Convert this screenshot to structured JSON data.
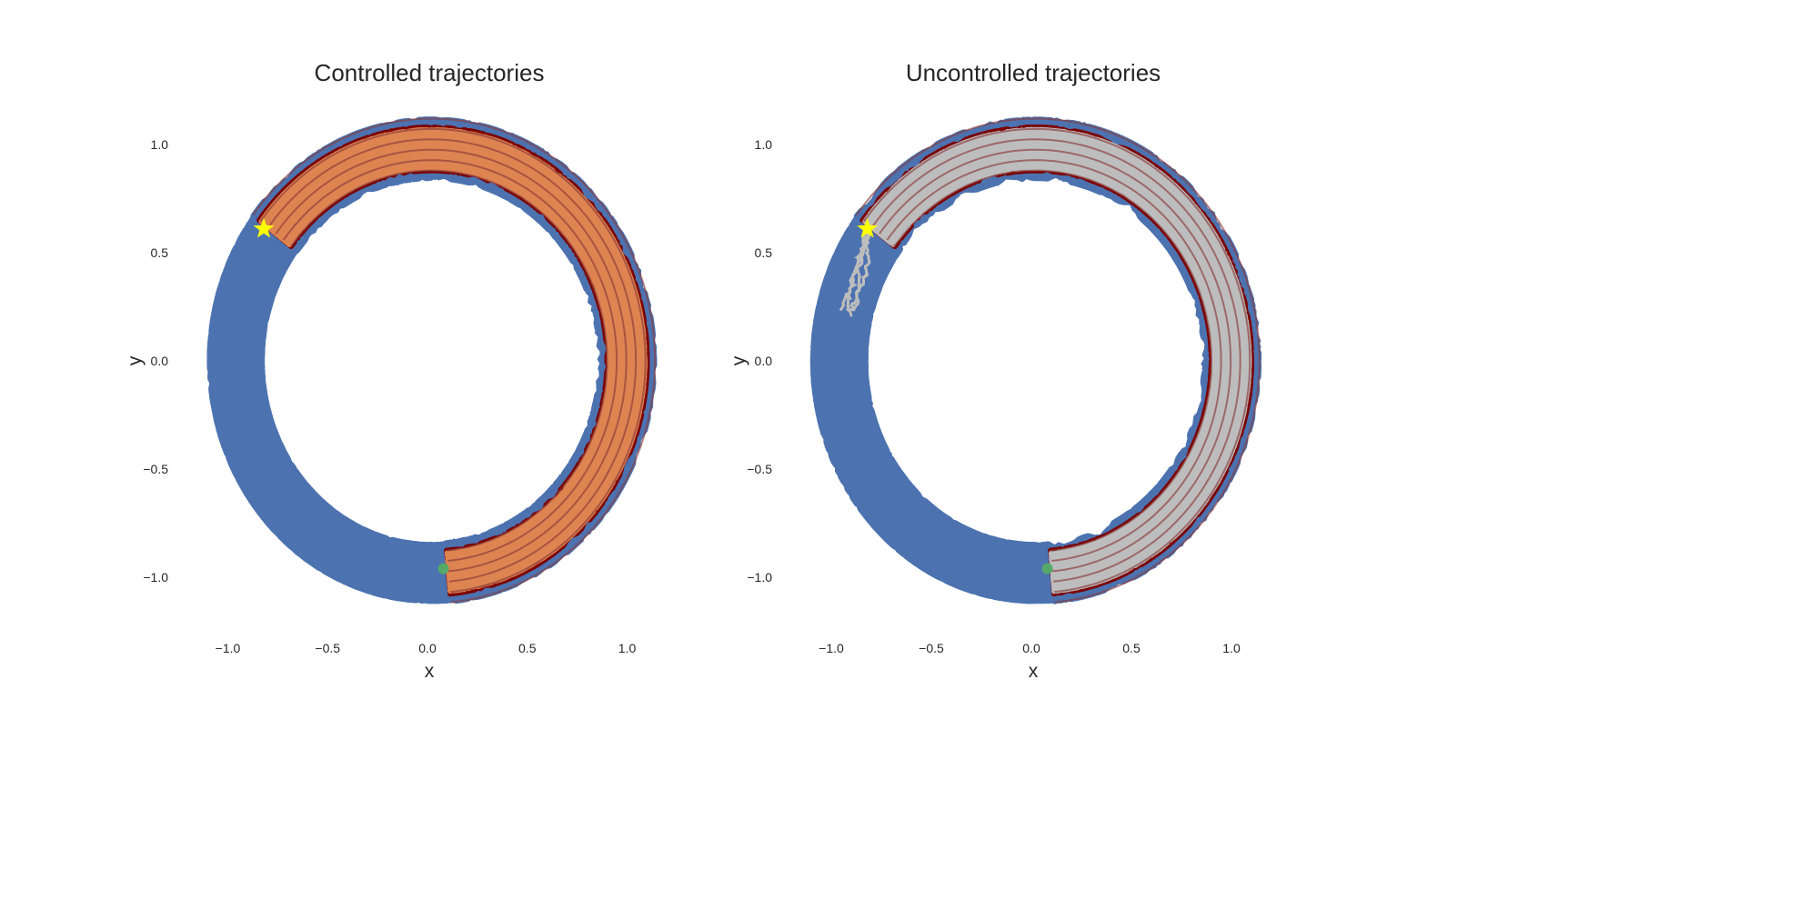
{
  "chart_data": [
    {
      "type": "line",
      "title": "Controlled trajectories",
      "xlabel": "x",
      "ylabel": "y",
      "xticks": [
        "−1.0",
        "−0.5",
        "0.0",
        "0.5",
        "1.0"
      ],
      "xtick_values": [
        -1.0,
        -0.5,
        0.0,
        0.5,
        1.0
      ],
      "yticks": [
        "−1.0",
        "−0.5",
        "0.0",
        "0.5",
        "1.0"
      ],
      "ytick_values": [
        -1.0,
        -0.5,
        0.0,
        0.5,
        1.0
      ],
      "xlim": [
        -1.3,
        1.3
      ],
      "ylim": [
        -1.28,
        1.2
      ],
      "grid": false,
      "start_marker": {
        "x": -0.82,
        "y": 0.61,
        "shape": "star",
        "color": "#ffff00"
      },
      "goal_marker": {
        "x": 0.08,
        "y": -0.96,
        "shape": "circle",
        "color": "#55a868"
      },
      "explored_region": {
        "color": "#4c72b0",
        "ring_center": [
          0.02,
          0.0
        ],
        "radius": 0.98,
        "spread": 0.12,
        "angle_range_deg": [
          -85,
          275
        ]
      },
      "reference_band": {
        "color": "#7b0000",
        "radius_range": [
          0.88,
          1.12
        ],
        "angle_range_deg": [
          143,
          -85
        ]
      },
      "trajectories": {
        "color": "#dd8452",
        "radius": 0.98,
        "spread": 0.09,
        "angle_range_deg": [
          143,
          -85
        ]
      }
    },
    {
      "type": "line",
      "title": "Uncontrolled trajectories",
      "xlabel": "x",
      "ylabel": "y",
      "xticks": [
        "−1.0",
        "−0.5",
        "0.0",
        "0.5",
        "1.0"
      ],
      "xtick_values": [
        -1.0,
        -0.5,
        0.0,
        0.5,
        1.0
      ],
      "yticks": [
        "−1.0",
        "−0.5",
        "0.0",
        "0.5",
        "1.0"
      ],
      "ytick_values": [
        -1.0,
        -0.5,
        0.0,
        0.5,
        1.0
      ],
      "xlim": [
        -1.3,
        1.3
      ],
      "ylim": [
        -1.28,
        1.2
      ],
      "grid": false,
      "start_marker": {
        "x": -0.82,
        "y": 0.61,
        "shape": "star",
        "color": "#ffff00"
      },
      "goal_marker": {
        "x": 0.08,
        "y": -0.96,
        "shape": "circle",
        "color": "#55a868"
      },
      "explored_region": {
        "color": "#4c72b0",
        "ring_center": [
          0.02,
          0.0
        ],
        "radius": 0.98,
        "spread": 0.12,
        "angle_range_deg": [
          -85,
          275
        ]
      },
      "reference_band": {
        "color": "#7b0000",
        "radius_range": [
          0.88,
          1.12
        ],
        "angle_range_deg": [
          143,
          -85
        ]
      },
      "trajectories": {
        "color": "#bdbdbd",
        "radius": 0.98,
        "spread": 0.09,
        "angle_range_deg": [
          143,
          -85
        ]
      }
    }
  ]
}
